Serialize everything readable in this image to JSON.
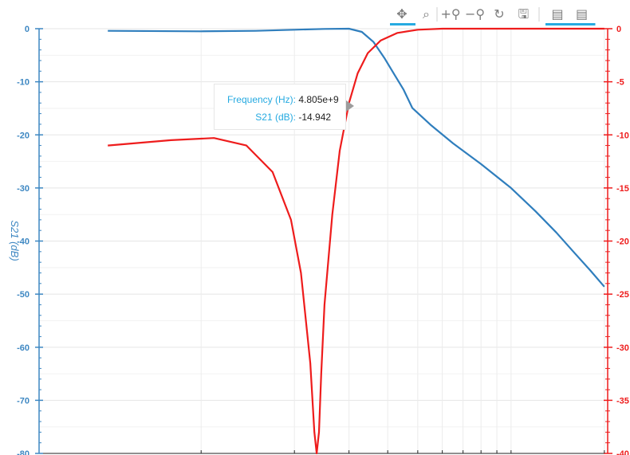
{
  "chart_data": {
    "type": "line",
    "xscale": "log",
    "xlabel": "",
    "ylabel": "S21 (dB)",
    "ylim": [
      -80,
      0
    ],
    "ylim_right": [
      -40,
      0
    ],
    "yticks_left": [
      "0",
      "-10",
      "-20",
      "-30",
      "-40",
      "-50",
      "-60",
      "-70",
      "-80"
    ],
    "yticks_right": [
      "0",
      "-5",
      "-10",
      "-15",
      "-20",
      "-25",
      "-30",
      "-35",
      "-40"
    ],
    "yticks_right_shown": [
      "0",
      "-5",
      "-10",
      "-15",
      "-20",
      "-25",
      "-30",
      "-35",
      "-40"
    ],
    "grid": true,
    "series": [
      {
        "axis": "left",
        "color": "#2f7ebd",
        "x": [
          500000000.0,
          1000000000.0,
          1500000000.0,
          2000000000.0,
          2500000000.0,
          3000000000.0,
          3300000000.0,
          3600000000.0,
          3900000000.0,
          4200000000.0,
          4500000000.0,
          4805000000.0,
          5500000000.0,
          6500000000.0,
          8000000000.0,
          10000000000.0,
          12000000000.0,
          14000000000.0,
          16000000000.0,
          18000000000.0,
          20000000000.0
        ],
        "values": [
          -0.4,
          -0.5,
          -0.4,
          -0.2,
          -0.05,
          0.0,
          -0.6,
          -2.5,
          -5.5,
          -8.6,
          -11.5,
          -14.942,
          -18.1,
          -21.6,
          -25.5,
          -30.0,
          -34.4,
          -38.4,
          -42.2,
          -45.5,
          -48.6
        ]
      },
      {
        "axis": "right",
        "color": "#ee1c1c",
        "x": [
          500000000.0,
          800000000.0,
          1100000000.0,
          1400000000.0,
          1700000000.0,
          1950000000.0,
          2100000000.0,
          2250000000.0,
          2320000000.0,
          2360000000.0,
          2400000000.0,
          2440000000.0,
          2500000000.0,
          2650000000.0,
          2800000000.0,
          3000000000.0,
          3200000000.0,
          3450000000.0,
          3800000000.0,
          4300000000.0,
          5000000000.0,
          6000000000.0,
          8000000000.0,
          20000000000.0
        ],
        "values": [
          -11.0,
          -10.5,
          -10.3,
          -11.0,
          -13.5,
          -18.0,
          -23.0,
          -31.5,
          -38.0,
          -40.0,
          -38.0,
          -32.5,
          -26.0,
          -17.5,
          -11.5,
          -7.0,
          -4.2,
          -2.3,
          -1.1,
          -0.4,
          -0.1,
          0.0,
          0.0,
          0.0
        ]
      }
    ],
    "tooltip": {
      "x_label": "Frequency (Hz):",
      "x_value": "4.805e+9",
      "y_label": "S21 (dB):",
      "y_value": "-14.942"
    }
  },
  "toolbar": {
    "tools": [
      {
        "name": "pan-tool",
        "icon": "pan-icon",
        "glyph": "✥",
        "active": true
      },
      {
        "name": "box-zoom-tool",
        "icon": "box-zoom-icon",
        "glyph": "⌕",
        "active": false
      },
      {
        "name": "zoom-in-tool",
        "icon": "zoom-in-icon",
        "glyph": "+⚲",
        "active": false
      },
      {
        "name": "zoom-out-tool",
        "icon": "zoom-out-icon",
        "glyph": "−⚲",
        "active": false
      },
      {
        "name": "reset-tool",
        "icon": "reset-icon",
        "glyph": "↻",
        "active": false
      },
      {
        "name": "save-tool",
        "icon": "save-icon",
        "glyph": "🖫",
        "active": false
      },
      {
        "name": "hover-tool-1",
        "icon": "hover-icon",
        "glyph": "▤",
        "active": true
      },
      {
        "name": "hover-tool-2",
        "icon": "hover-icon",
        "glyph": "▤",
        "active": true
      }
    ]
  }
}
